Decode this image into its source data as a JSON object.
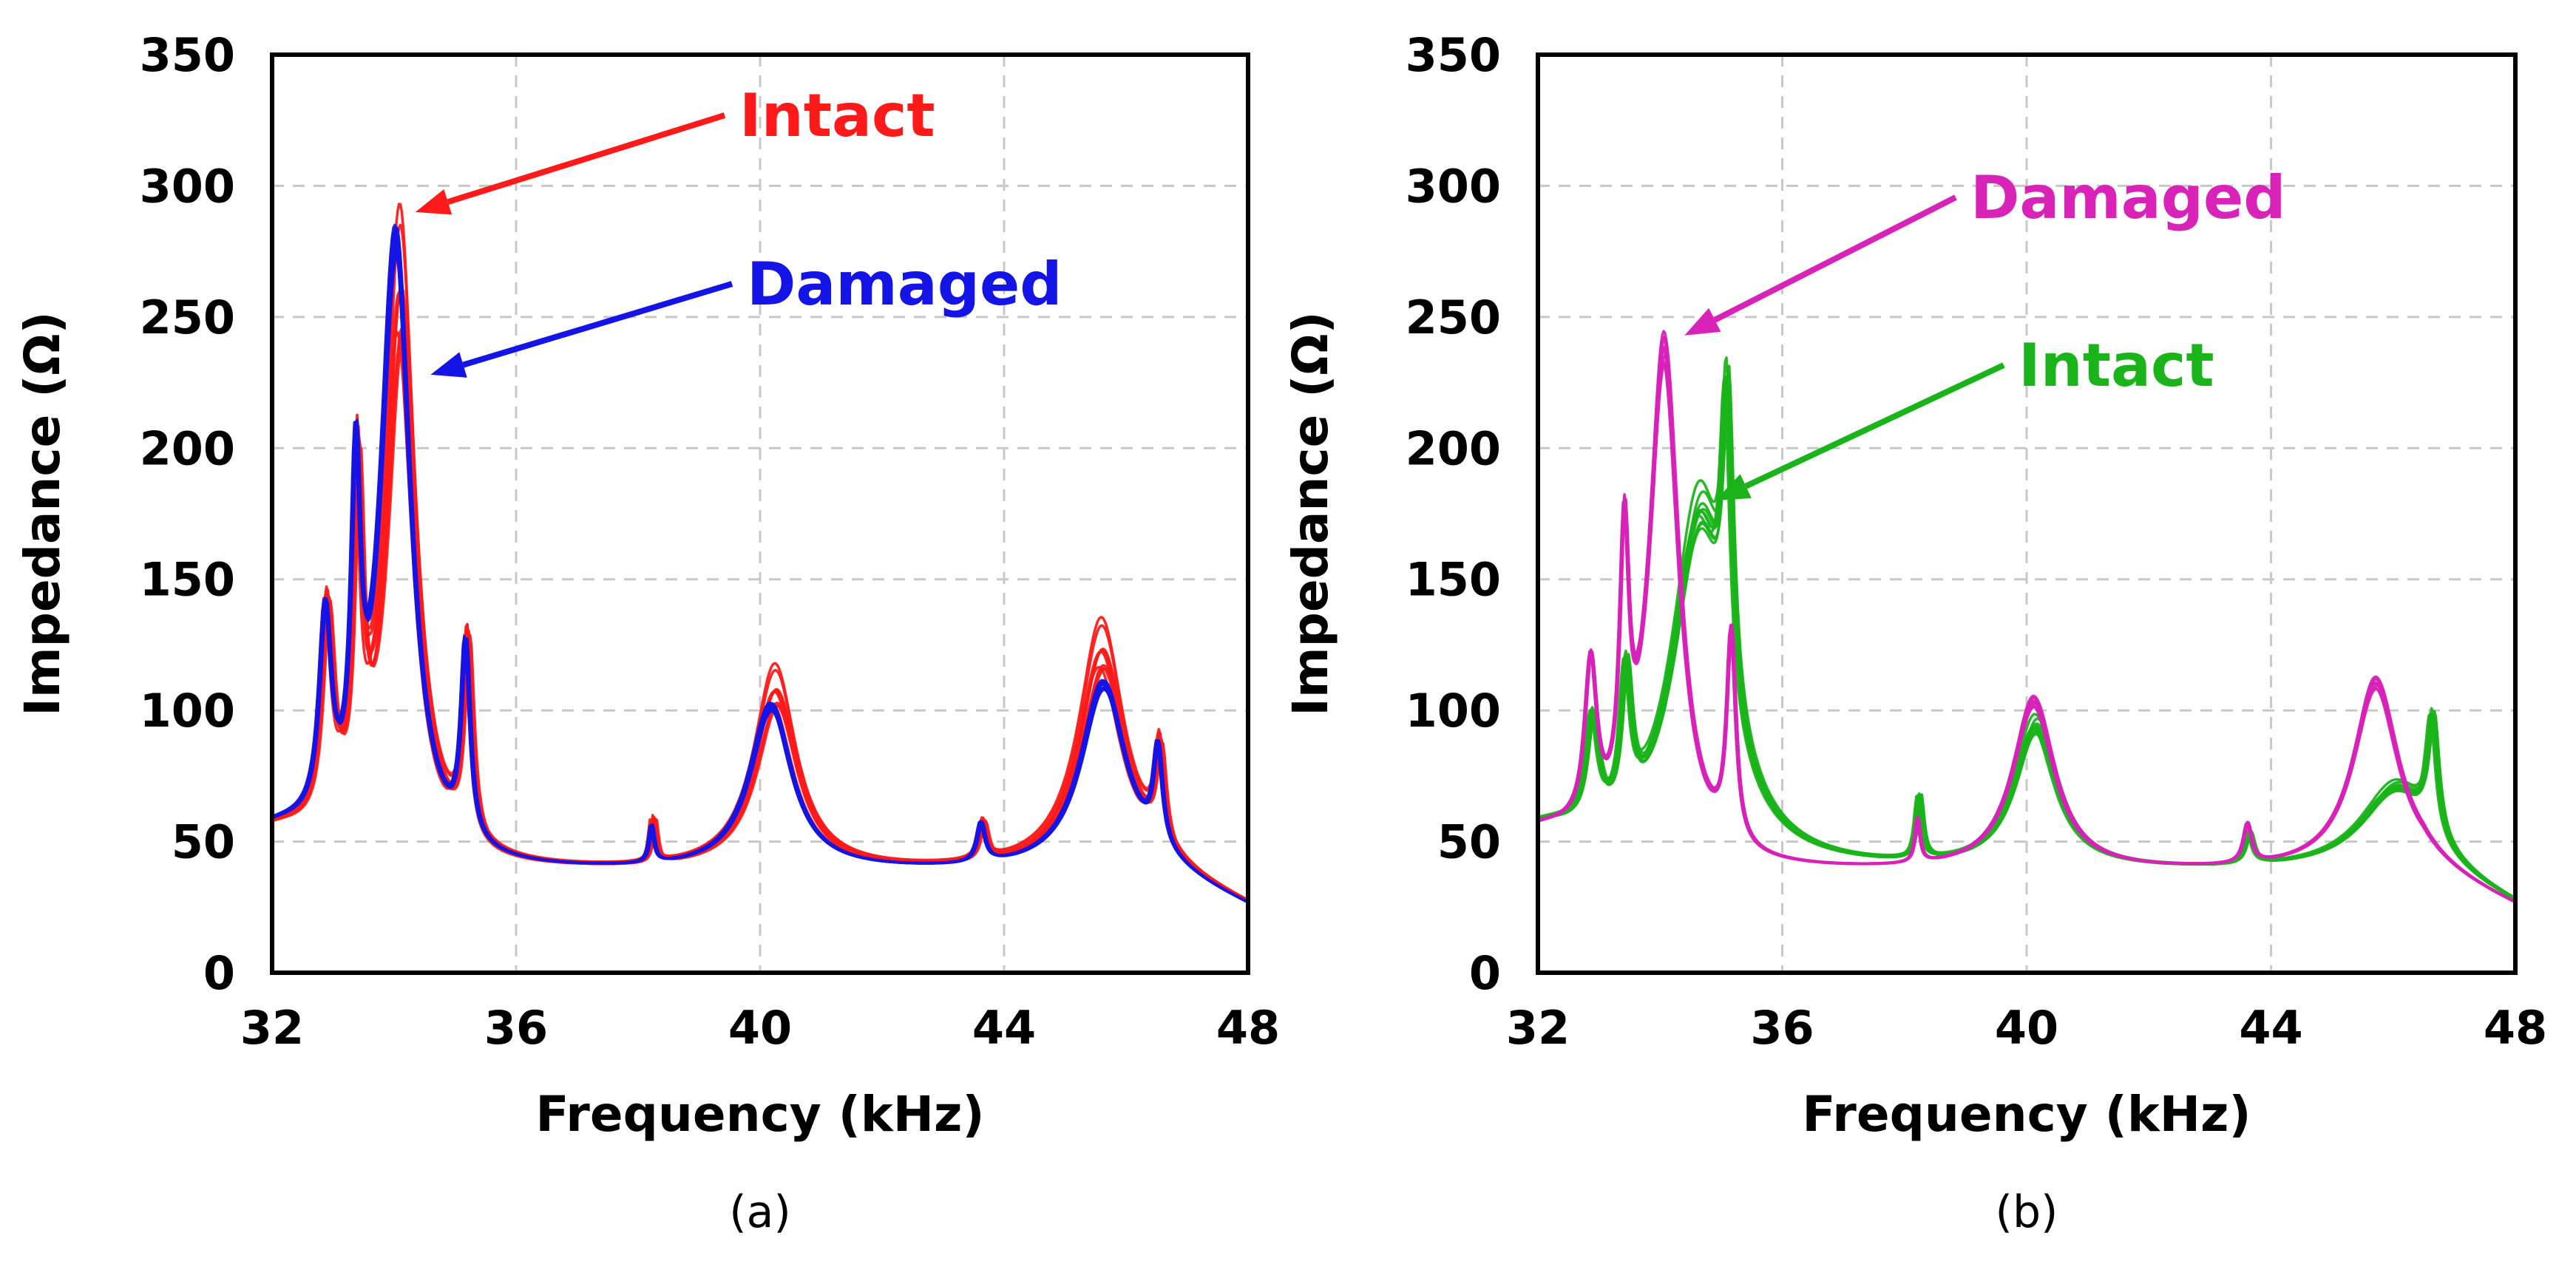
{
  "chart_data": [
    {
      "type": "line",
      "panel_label": "(a)",
      "xlabel": "Frequency (kHz)",
      "ylabel": "Impedance (Ω)",
      "xlim": [
        32,
        48
      ],
      "ylim": [
        0,
        350
      ],
      "x_ticks": [
        32,
        36,
        40,
        44,
        48
      ],
      "y_ticks": [
        0,
        50,
        100,
        150,
        200,
        250,
        300,
        350
      ],
      "grid": true,
      "series": [
        {
          "name": "Intact",
          "color": "#ff1a1a",
          "count": 10,
          "peaks": [
            [
              32.85,
              120,
              0.12
            ],
            [
              33.35,
              165,
              0.09
            ],
            [
              34.05,
              290,
              0.3
            ],
            [
              35.15,
              115,
              0.09
            ],
            [
              38.2,
              55,
              0.05
            ],
            [
              40.2,
              117,
              0.42
            ],
            [
              43.6,
              53,
              0.08
            ],
            [
              45.55,
              135,
              0.45
            ],
            [
              46.5,
              75,
              0.09
            ]
          ],
          "scale_range": [
            0.7,
            1.0
          ],
          "x_shift_range": [
            0.0,
            0.1
          ]
        },
        {
          "name": "Damaged",
          "color": "#1414e6",
          "count": 8,
          "peaks": [
            [
              32.85,
              115,
              0.12
            ],
            [
              33.35,
              160,
              0.09
            ],
            [
              34.0,
              285,
              0.3
            ],
            [
              35.15,
              112,
              0.09
            ],
            [
              38.2,
              52,
              0.05
            ],
            [
              40.15,
              103,
              0.42
            ],
            [
              43.6,
              53,
              0.08
            ],
            [
              45.6,
              112,
              0.45
            ],
            [
              46.5,
              74,
              0.09
            ]
          ],
          "scale_range": [
            0.9,
            1.0
          ],
          "x_shift_range": [
            0.0,
            0.05
          ]
        }
      ],
      "annotations": [
        {
          "text": "Intact",
          "color": "#ff1a1a",
          "points_to": [
            34.35,
            290
          ]
        },
        {
          "text": "Damaged",
          "color": "#1414e6",
          "points_to": [
            34.6,
            228
          ]
        }
      ]
    },
    {
      "type": "line",
      "panel_label": "(b)",
      "xlabel": "Frequency (kHz)",
      "ylabel": "Impedance (Ω)",
      "xlim": [
        32,
        48
      ],
      "ylim": [
        0,
        350
      ],
      "x_ticks": [
        32,
        36,
        40,
        44,
        48
      ],
      "y_ticks": [
        0,
        50,
        100,
        150,
        200,
        250,
        300,
        350
      ],
      "grid": true,
      "series": [
        {
          "name": "Intact",
          "color": "#1ab41a",
          "count": 10,
          "peaks": [
            [
              32.85,
              78,
              0.12
            ],
            [
              33.4,
              92,
              0.1
            ],
            [
              34.6,
              182,
              0.55
            ],
            [
              35.05,
              148,
              0.1
            ],
            [
              38.2,
              62,
              0.06
            ],
            [
              40.1,
              97,
              0.42
            ],
            [
              43.6,
              50,
              0.08
            ],
            [
              46.0,
              72,
              0.7
            ],
            [
              46.6,
              82,
              0.1
            ]
          ],
          "scale_range": [
            0.82,
            1.0
          ],
          "x_shift_range": [
            0.0,
            0.08
          ]
        },
        {
          "name": "Damaged",
          "color": "#d822b8",
          "count": 8,
          "peaks": [
            [
              32.85,
              100,
              0.12
            ],
            [
              33.4,
              140,
              0.09
            ],
            [
              34.05,
              245,
              0.3
            ],
            [
              35.15,
              118,
              0.09
            ],
            [
              38.2,
              55,
              0.05
            ],
            [
              40.1,
              106,
              0.42
            ],
            [
              43.6,
              53,
              0.08
            ],
            [
              45.7,
              114,
              0.45
            ]
          ],
          "scale_range": [
            0.9,
            1.0
          ],
          "x_shift_range": [
            0.0,
            0.05
          ]
        }
      ],
      "annotations": [
        {
          "text": "Damaged",
          "color": "#d822b8",
          "points_to": [
            34.4,
            243
          ]
        },
        {
          "text": "Intact",
          "color": "#1ab41a",
          "points_to": [
            34.9,
            180
          ]
        }
      ]
    }
  ]
}
